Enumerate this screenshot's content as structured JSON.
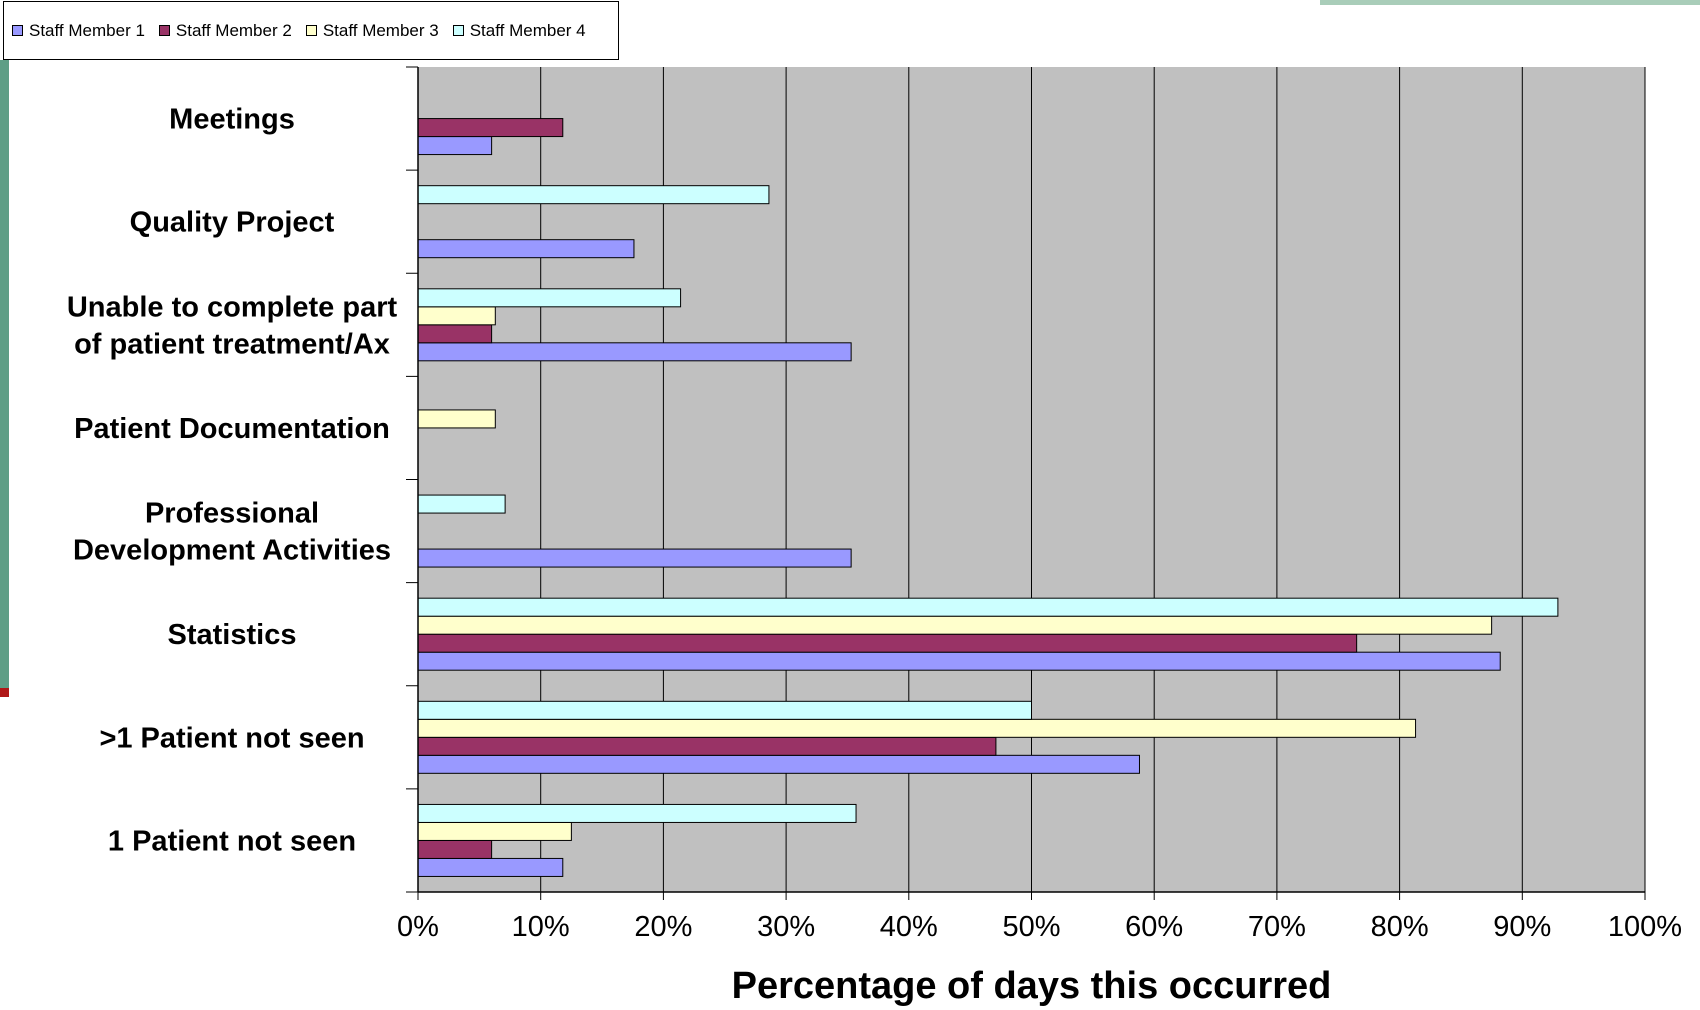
{
  "chart_data": {
    "type": "bar",
    "orientation": "horizontal",
    "categories": [
      "Meetings",
      "Quality Project",
      "Unable to complete part of patient treatment/Ax",
      "Patient Documentation",
      "Professional Development Activities",
      "Statistics",
      ">1 Patient not seen",
      "1 Patient not seen"
    ],
    "category_lines": [
      [
        "Meetings"
      ],
      [
        "Quality Project"
      ],
      [
        "Unable to complete part",
        "of patient treatment/Ax"
      ],
      [
        "Patient Documentation"
      ],
      [
        "Professional",
        "Development Activities"
      ],
      [
        "Statistics"
      ],
      [
        ">1 Patient not seen"
      ],
      [
        "1 Patient not seen"
      ]
    ],
    "series": [
      {
        "name": "Staff Member 1",
        "color": "#9999ff",
        "values": [
          6,
          17.6,
          35.3,
          0,
          35.3,
          88.2,
          58.8,
          11.8
        ]
      },
      {
        "name": "Staff Member 2",
        "color": "#993366",
        "values": [
          11.8,
          0,
          6,
          0,
          0,
          76.5,
          47.1,
          6
        ]
      },
      {
        "name": "Staff Member 3",
        "color": "#ffffcc",
        "values": [
          0,
          0,
          6.3,
          6.3,
          0,
          87.5,
          81.3,
          12.5
        ]
      },
      {
        "name": "Staff Member 4",
        "color": "#ccffff",
        "values": [
          0,
          28.6,
          21.4,
          0,
          7.1,
          92.9,
          50,
          35.7
        ]
      }
    ],
    "xlabel": "Percentage of days this occurred",
    "ylabel": "",
    "xlim": [
      0,
      100
    ],
    "xticks": [
      "0%",
      "10%",
      "20%",
      "30%",
      "40%",
      "50%",
      "60%",
      "70%",
      "80%",
      "90%",
      "100%"
    ],
    "plot_background": "#c0c0c0",
    "grid": true,
    "legend_position": "top-left"
  }
}
